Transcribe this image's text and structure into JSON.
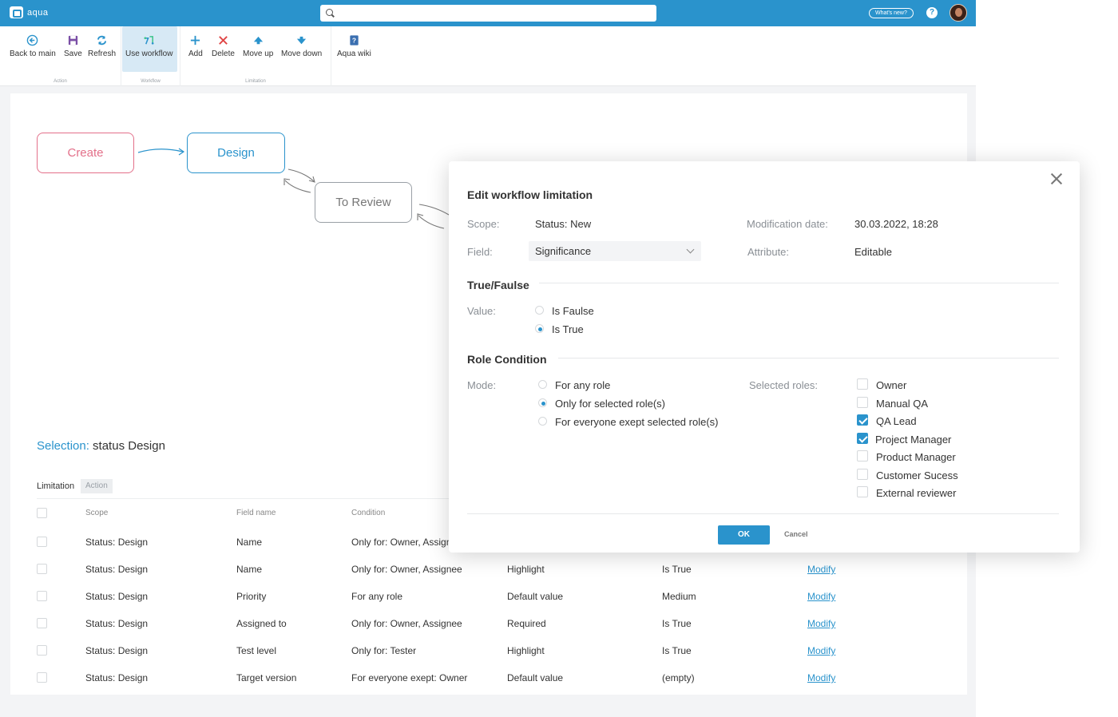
{
  "app": {
    "logo_text": "aqua",
    "whats_new": "What's new?",
    "help": "?"
  },
  "search": {
    "placeholder": ""
  },
  "toolbar": {
    "groups": [
      {
        "label": "Action"
      },
      {
        "label": "Workflow"
      },
      {
        "label": "Limitation"
      }
    ],
    "buttons": {
      "back": "Back to main",
      "save": "Save",
      "refresh": "Refresh",
      "use_workflow": "Use workflow",
      "add": "Add",
      "delete": "Delete",
      "move_up": "Move up",
      "move_down": "Move down",
      "wiki": "Aqua wiki"
    }
  },
  "workflow": {
    "nodes": [
      {
        "label": "Create",
        "color": "#e3708a"
      },
      {
        "label": "Design",
        "color": "#2a93cc"
      },
      {
        "label": "To Review",
        "color": "#9aa0a6"
      }
    ]
  },
  "selection": {
    "prefix": "Selection:",
    "name": "status Design"
  },
  "tabs": {
    "limitation": "Limitation",
    "action": "Action"
  },
  "table": {
    "columns": [
      "Scope",
      "Field name",
      "Condition"
    ],
    "rows": [
      {
        "scope": "Status: Design",
        "field": "Name",
        "condition": "Only for: Owner, Assignee",
        "action": "",
        "value": "",
        "link": ""
      },
      {
        "scope": "Status: Design",
        "field": "Name",
        "condition": "Only for: Owner, Assignee",
        "action": "Highlight",
        "value": "Is True",
        "link": "Modify"
      },
      {
        "scope": "Status: Design",
        "field": "Priority",
        "condition": "For any role",
        "action": "Default value",
        "value": "Medium",
        "link": "Modify"
      },
      {
        "scope": "Status: Design",
        "field": "Assigned to",
        "condition": "Only for: Owner, Assignee",
        "action": "Required",
        "value": "Is True",
        "link": "Modify"
      },
      {
        "scope": "Status: Design",
        "field": "Test level",
        "condition": "Only for: Tester",
        "action": "Highlight",
        "value": "Is True",
        "link": "Modify"
      },
      {
        "scope": "Status: Design",
        "field": "Target version",
        "condition": "For everyone exept: Owner",
        "action": "Default value",
        "value": "(empty)",
        "link": "Modify"
      }
    ]
  },
  "modal": {
    "title": "Edit workflow limitation",
    "scope_label": "Scope:",
    "scope_value": "Status: New",
    "mod_date_label": "Modification date:",
    "mod_date_value": "30.03.2022, 18:28",
    "field_label": "Field:",
    "field_value": "Significance",
    "attribute_label": "Attribute:",
    "attribute_value": "Editable",
    "truefalse_title": "True/Faulse",
    "value_label": "Value:",
    "value_options": [
      {
        "label": "Is Faulse",
        "checked": false
      },
      {
        "label": "Is True",
        "checked": true
      }
    ],
    "role_title": "Role Condition",
    "mode_label": "Mode:",
    "mode_options": [
      {
        "label": "For any role",
        "checked": false
      },
      {
        "label": "Only for selected role(s)",
        "checked": true
      },
      {
        "label": "For everyone exept selected role(s)",
        "checked": false
      }
    ],
    "selected_roles_label": "Selected roles:",
    "roles": [
      {
        "label": "Owner",
        "checked": false
      },
      {
        "label": "Manual QA",
        "checked": false
      },
      {
        "label": "QA Lead",
        "checked": true
      },
      {
        "label": "Project Manager",
        "checked": true
      },
      {
        "label": "Product Manager",
        "checked": false
      },
      {
        "label": "Customer Sucess",
        "checked": false
      },
      {
        "label": "External reviewer",
        "checked": false
      }
    ],
    "ok": "OK",
    "cancel": "Cancel"
  },
  "colors": {
    "accent": "#2a93cc",
    "create": "#e3708a",
    "delete": "#e04545",
    "save": "#7b4fa6"
  }
}
